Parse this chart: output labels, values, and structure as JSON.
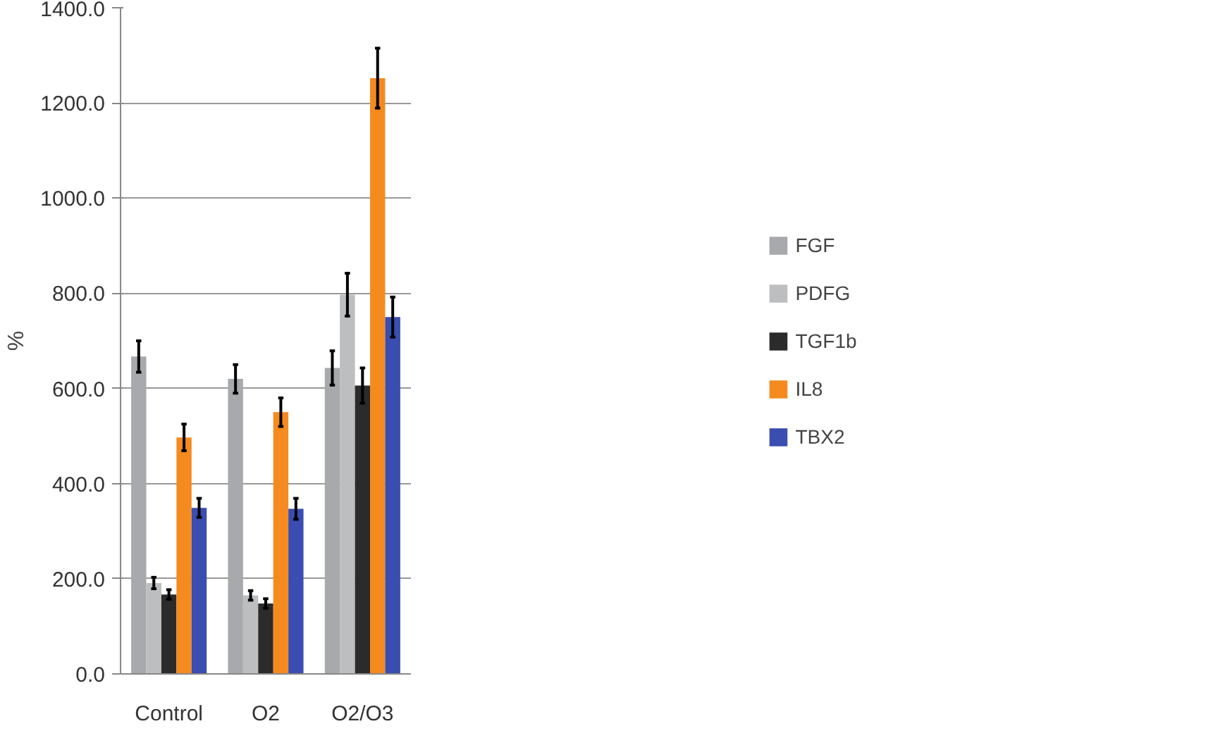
{
  "chart_data": {
    "type": "bar",
    "ylabel": "%",
    "categories": [
      "Control",
      "O2",
      "O2/O3"
    ],
    "series": [
      {
        "name": "FGF",
        "color": "#a7a9ac",
        "values": [
          667,
          620,
          643
        ],
        "errors": [
          33,
          30,
          36
        ]
      },
      {
        "name": "PDFG",
        "color": "#bdbec0",
        "values": [
          191,
          165,
          797
        ],
        "errors": [
          12,
          10,
          45
        ]
      },
      {
        "name": "TGF1b",
        "color": "#2b2b2b",
        "values": [
          167,
          148,
          606
        ],
        "errors": [
          10,
          10,
          37
        ]
      },
      {
        "name": "IL8",
        "color": "#f58a1f",
        "values": [
          497,
          550,
          1252
        ],
        "errors": [
          28,
          30,
          63
        ]
      },
      {
        "name": "TBX2",
        "color": "#3a4db0",
        "values": [
          349,
          347,
          750
        ],
        "errors": [
          20,
          22,
          42
        ]
      }
    ],
    "ylim": [
      0,
      1400
    ],
    "yticks": [
      {
        "value": 0,
        "label": "0.0"
      },
      {
        "value": 200,
        "label": "200.0"
      },
      {
        "value": 400,
        "label": "400.0"
      },
      {
        "value": 600,
        "label": "600.0"
      },
      {
        "value": 800,
        "label": "800.0"
      },
      {
        "value": 1000,
        "label": "1000.0"
      },
      {
        "value": 1200,
        "label": "1200.0"
      },
      {
        "value": 1400,
        "label": "1400.0"
      }
    ],
    "grid": "y",
    "legend": "right"
  }
}
